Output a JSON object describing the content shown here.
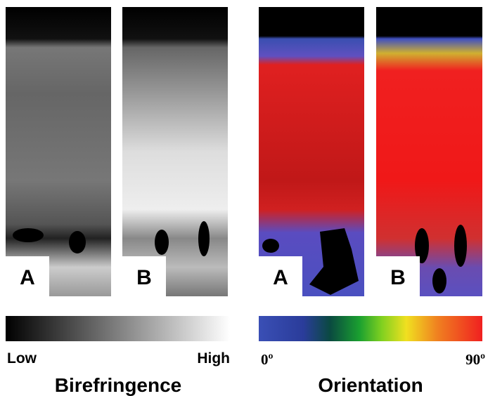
{
  "panels": [
    {
      "label": "A"
    },
    {
      "label": "B"
    },
    {
      "label": "A"
    },
    {
      "label": "B"
    }
  ],
  "birefringence_scale": {
    "low": "Low",
    "high": "High",
    "title": "Birefringence"
  },
  "orientation_scale": {
    "min": "0º",
    "max": "90º",
    "title": "Orientation"
  }
}
